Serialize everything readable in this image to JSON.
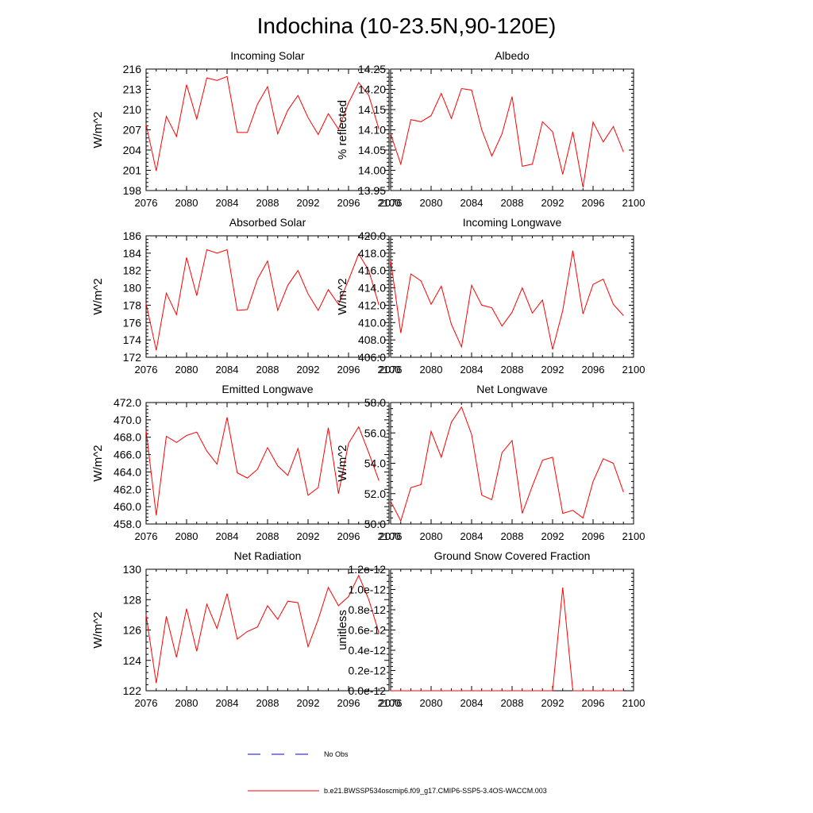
{
  "title": "Indochina (10-23.5N,90-120E)",
  "colors": {
    "model": "#ff0000",
    "obs": "#0000ff",
    "axis": "#000000"
  },
  "legend": {
    "obs_label": "No Obs",
    "model_label": "b.e21.BWSSP534oscmip6.f09_g17.CMIP6-SSP5-3.4OS-WACCM.003"
  },
  "chart_data": [
    {
      "type": "line",
      "title": "Incoming Solar",
      "ylabel": "W/m^2",
      "xlim": [
        2076,
        2100
      ],
      "ylim": [
        198,
        216
      ],
      "xticks": [
        "2076",
        "2080",
        "2084",
        "2088",
        "2092",
        "2096",
        "2100"
      ],
      "yticks": [
        "198",
        "201",
        "204",
        "207",
        "210",
        "213",
        "216"
      ],
      "x": [
        2076,
        2077,
        2078,
        2079,
        2080,
        2081,
        2082,
        2083,
        2084,
        2085,
        2086,
        2087,
        2088,
        2089,
        2090,
        2091,
        2092,
        2093,
        2094,
        2095,
        2096,
        2097,
        2098,
        2099
      ],
      "values": [
        207.8,
        200.9,
        209.0,
        206.0,
        213.7,
        208.6,
        214.7,
        214.3,
        214.9,
        206.6,
        206.6,
        210.8,
        213.4,
        206.4,
        209.9,
        212.1,
        208.8,
        206.3,
        209.4,
        207.1,
        211.0,
        214.0,
        212.1,
        207.1
      ]
    },
    {
      "type": "line",
      "title": "Albedo",
      "ylabel": "% reflected",
      "xlim": [
        2076,
        2100
      ],
      "ylim": [
        13.95,
        14.25
      ],
      "xticks": [
        "2076",
        "2080",
        "2084",
        "2088",
        "2092",
        "2096",
        "2100"
      ],
      "yticks": [
        "13.95",
        "14.00",
        "14.05",
        "14.10",
        "14.15",
        "14.20",
        "14.25"
      ],
      "x": [
        2076,
        2077,
        2078,
        2079,
        2080,
        2081,
        2082,
        2083,
        2084,
        2085,
        2086,
        2087,
        2088,
        2089,
        2090,
        2091,
        2092,
        2093,
        2094,
        2095,
        2096,
        2097,
        2098,
        2099
      ],
      "values": [
        14.09,
        14.015,
        14.125,
        14.12,
        14.135,
        14.19,
        14.128,
        14.202,
        14.198,
        14.1,
        14.035,
        14.09,
        14.182,
        14.01,
        14.015,
        14.12,
        14.095,
        13.99,
        14.095,
        13.958,
        14.119,
        14.07,
        14.108,
        14.045
      ]
    },
    {
      "type": "line",
      "title": "Absorbed Solar",
      "ylabel": "W/m^2",
      "xlim": [
        2076,
        2100
      ],
      "ylim": [
        172,
        186
      ],
      "xticks": [
        "2076",
        "2080",
        "2084",
        "2088",
        "2092",
        "2096",
        "2100"
      ],
      "yticks": [
        "172",
        "174",
        "176",
        "178",
        "180",
        "182",
        "184",
        "186"
      ],
      "x": [
        2076,
        2077,
        2078,
        2079,
        2080,
        2081,
        2082,
        2083,
        2084,
        2085,
        2086,
        2087,
        2088,
        2089,
        2090,
        2091,
        2092,
        2093,
        2094,
        2095,
        2096,
        2097,
        2098,
        2099
      ],
      "values": [
        178.2,
        172.8,
        179.4,
        176.9,
        183.5,
        179.1,
        184.4,
        184.0,
        184.4,
        177.4,
        177.5,
        181.0,
        183.1,
        177.4,
        180.3,
        182.0,
        179.3,
        177.4,
        179.8,
        178.1,
        180.9,
        183.9,
        182.0,
        178.0
      ]
    },
    {
      "type": "line",
      "title": "Incoming Longwave",
      "ylabel": "W/m^2",
      "xlim": [
        2076,
        2100
      ],
      "ylim": [
        406,
        420
      ],
      "xticks": [
        "2076",
        "2080",
        "2084",
        "2088",
        "2092",
        "2096",
        "2100"
      ],
      "yticks": [
        "406.0",
        "408.0",
        "410.0",
        "412.0",
        "414.0",
        "416.0",
        "418.0",
        "420.0"
      ],
      "x": [
        2076,
        2077,
        2078,
        2079,
        2080,
        2081,
        2082,
        2083,
        2084,
        2085,
        2086,
        2087,
        2088,
        2089,
        2090,
        2091,
        2092,
        2093,
        2094,
        2095,
        2096,
        2097,
        2098,
        2099
      ],
      "values": [
        417.2,
        408.8,
        415.6,
        414.8,
        412.1,
        414.2,
        409.8,
        407.2,
        414.3,
        412.0,
        411.7,
        409.6,
        411.2,
        414.0,
        411.1,
        412.6,
        406.9,
        411.4,
        418.3,
        411.0,
        414.4,
        415.0,
        412.1,
        410.8
      ]
    },
    {
      "type": "line",
      "title": "Emitted Longwave",
      "ylabel": "W/m^2",
      "xlim": [
        2076,
        2100
      ],
      "ylim": [
        458,
        472
      ],
      "xticks": [
        "2076",
        "2080",
        "2084",
        "2088",
        "2092",
        "2096",
        "2100"
      ],
      "yticks": [
        "458.0",
        "460.0",
        "462.0",
        "464.0",
        "466.0",
        "468.0",
        "470.0",
        "472.0"
      ],
      "x": [
        2076,
        2077,
        2078,
        2079,
        2080,
        2081,
        2082,
        2083,
        2084,
        2085,
        2086,
        2087,
        2088,
        2089,
        2090,
        2091,
        2092,
        2093,
        2094,
        2095,
        2096,
        2097,
        2098,
        2099
      ],
      "values": [
        468.8,
        459.0,
        468.1,
        467.4,
        468.2,
        468.6,
        466.4,
        464.9,
        470.3,
        463.9,
        463.3,
        464.3,
        466.8,
        464.7,
        463.6,
        466.7,
        461.3,
        462.2,
        469.1,
        461.5,
        467.3,
        469.2,
        466.2,
        463.0
      ]
    },
    {
      "type": "line",
      "title": "Net Longwave",
      "ylabel": "W/m^2",
      "xlim": [
        2076,
        2100
      ],
      "ylim": [
        50,
        58
      ],
      "xticks": [
        "2076",
        "2080",
        "2084",
        "2088",
        "2092",
        "2096",
        "2100"
      ],
      "yticks": [
        "50.0",
        "52.0",
        "54.0",
        "56.0",
        "58.0"
      ],
      "x": [
        2076,
        2077,
        2078,
        2079,
        2080,
        2081,
        2082,
        2083,
        2084,
        2085,
        2086,
        2087,
        2088,
        2089,
        2090,
        2091,
        2092,
        2093,
        2094,
        2095,
        2096,
        2097,
        2098,
        2099
      ],
      "values": [
        51.5,
        50.2,
        52.4,
        52.6,
        56.1,
        54.4,
        56.7,
        57.7,
        55.9,
        51.9,
        51.6,
        54.7,
        55.5,
        50.7,
        52.5,
        54.2,
        54.4,
        50.7,
        50.9,
        50.4,
        52.8,
        54.3,
        54.0,
        52.1
      ]
    },
    {
      "type": "line",
      "title": "Net Radiation",
      "ylabel": "W/m^2",
      "xlim": [
        2076,
        2100
      ],
      "ylim": [
        122,
        130
      ],
      "xticks": [
        "2076",
        "2080",
        "2084",
        "2088",
        "2092",
        "2096",
        "2100"
      ],
      "yticks": [
        "122",
        "124",
        "126",
        "128",
        "130"
      ],
      "x": [
        2076,
        2077,
        2078,
        2079,
        2080,
        2081,
        2082,
        2083,
        2084,
        2085,
        2086,
        2087,
        2088,
        2089,
        2090,
        2091,
        2092,
        2093,
        2094,
        2095,
        2096,
        2097,
        2098,
        2099
      ],
      "values": [
        127.0,
        122.5,
        126.9,
        124.2,
        127.4,
        124.6,
        127.7,
        126.1,
        128.4,
        125.4,
        125.9,
        126.2,
        127.6,
        126.7,
        127.9,
        127.8,
        124.9,
        126.7,
        128.8,
        127.6,
        128.2,
        129.6,
        128.0,
        125.8
      ]
    },
    {
      "type": "line",
      "title": "Ground Snow Covered Fraction",
      "ylabel": "unitless",
      "xlim": [
        2076,
        2100
      ],
      "ylim": [
        0,
        1.2e-12
      ],
      "xticks": [
        "2076",
        "2080",
        "2084",
        "2088",
        "2092",
        "2096",
        "2100"
      ],
      "yticks": [
        "0.0e-12",
        "0.2e-12",
        "0.4e-12",
        "0.6e-12",
        "0.8e-12",
        "1.0e-12",
        "1.2e-12"
      ],
      "x": [
        2076,
        2077,
        2078,
        2079,
        2080,
        2081,
        2082,
        2083,
        2084,
        2085,
        2086,
        2087,
        2088,
        2089,
        2090,
        2091,
        2092,
        2093,
        2094,
        2095,
        2096,
        2097,
        2098,
        2099
      ],
      "values": [
        0,
        0,
        0,
        0,
        0,
        0,
        0,
        0,
        0,
        0,
        0,
        0,
        0,
        0,
        0,
        0,
        0,
        1.02e-12,
        0,
        0,
        0,
        0,
        0,
        0
      ]
    }
  ]
}
